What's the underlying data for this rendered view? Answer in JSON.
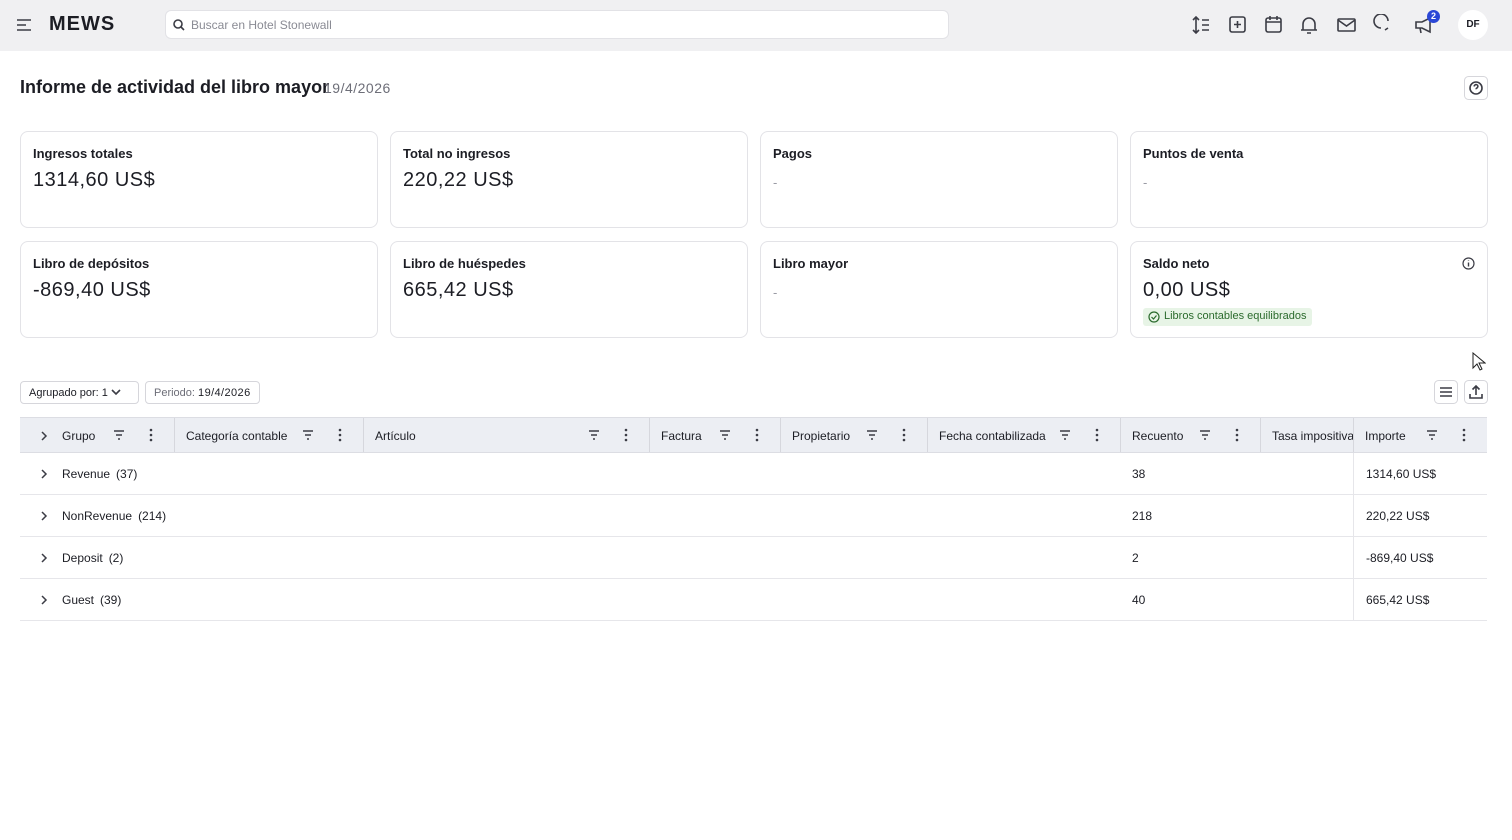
{
  "header": {
    "logo": "MEWS",
    "search_placeholder": "Buscar en Hotel Stonewall",
    "notification_count": 2,
    "avatar": "DF"
  },
  "page": {
    "title": "Informe de actividad del libro mayor",
    "date": "19/4/2026"
  },
  "cards": [
    {
      "label": "Ingresos totales",
      "value": "1314,60 US$"
    },
    {
      "label": "Total no ingresos",
      "value": "220,22 US$"
    },
    {
      "label": "Pagos",
      "value": "-"
    },
    {
      "label": "Puntos de venta",
      "value": "-"
    },
    {
      "label": "Libro de depósitos",
      "value": "-869,40 US$"
    },
    {
      "label": "Libro de huéspedes",
      "value": "665,42 US$"
    },
    {
      "label": "Libro mayor",
      "value": "-"
    },
    {
      "label": "Saldo neto",
      "value": "0,00 US$",
      "badge": "Libros contables equilibrados"
    }
  ],
  "toolbar": {
    "group_by": "Agrupado por: 1",
    "period_label": "Periodo:",
    "period_value": "19/4/2026"
  },
  "table": {
    "columns": [
      "Grupo",
      "Categoría contable",
      "Artículo",
      "Factura",
      "Propietario",
      "Fecha contabilizada",
      "Recuento",
      "Tasa impositiva",
      "Importe"
    ],
    "rows": [
      {
        "group": "Revenue",
        "count": "(37)",
        "recuento": 38,
        "importe": "1314,60 US$"
      },
      {
        "group": "NonRevenue",
        "count": "(214)",
        "recuento": 218,
        "importe": "220,22 US$"
      },
      {
        "group": "Deposit",
        "count": "(2)",
        "recuento": 2,
        "importe": "-869,40 US$"
      },
      {
        "group": "Guest",
        "count": "(39)",
        "recuento": 40,
        "importe": "665,42 US$"
      }
    ]
  }
}
